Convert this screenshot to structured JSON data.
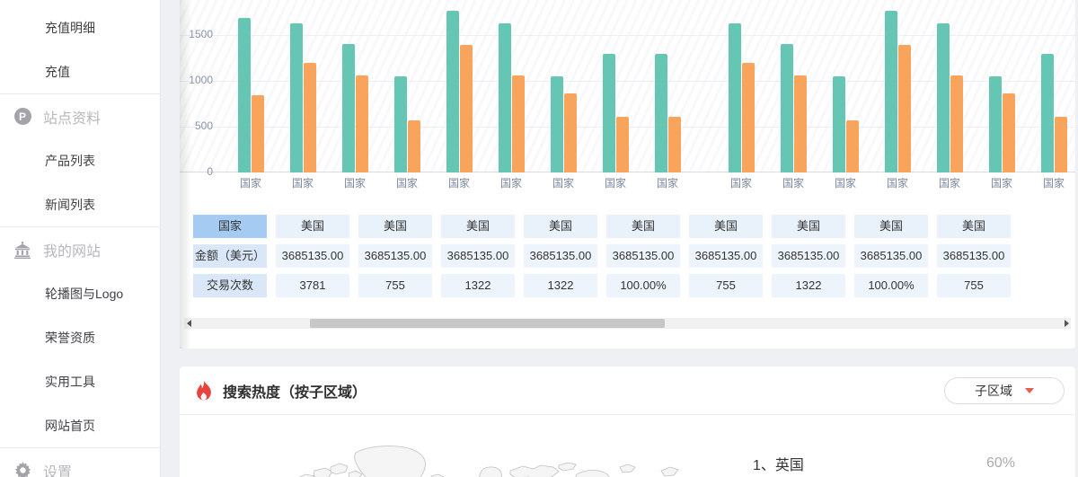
{
  "sidebar": {
    "items": [
      {
        "type": "sub",
        "label": "充值明细"
      },
      {
        "type": "sub",
        "label": "充值"
      },
      {
        "type": "divider"
      },
      {
        "type": "section",
        "icon": "p-circle-icon",
        "label": "站点资料"
      },
      {
        "type": "sub",
        "label": "产品列表"
      },
      {
        "type": "sub",
        "label": "新闻列表"
      },
      {
        "type": "divider"
      },
      {
        "type": "section",
        "icon": "bank-icon",
        "label": "我的网站"
      },
      {
        "type": "sub",
        "label": "轮播图与Logo"
      },
      {
        "type": "sub",
        "label": "荣誉资质"
      },
      {
        "type": "sub",
        "label": "实用工具"
      },
      {
        "type": "sub",
        "label": "网站首页"
      },
      {
        "type": "divider"
      },
      {
        "type": "section",
        "icon": "gear-icon",
        "label": "设置"
      }
    ]
  },
  "chart_data": {
    "type": "bar",
    "categories": [
      "国家",
      "国家",
      "国家",
      "国家",
      "国家",
      "国家",
      "国家",
      "国家",
      "国家",
      "国家",
      "国家",
      "国家",
      "国家",
      "国家",
      "国家",
      "国家"
    ],
    "series": [
      {
        "name": "teal",
        "color": "#65c7b3",
        "values": [
          1680,
          1630,
          1400,
          1050,
          1760,
          1630,
          1050,
          1290,
          1290,
          1630,
          1400,
          1050,
          1760,
          1630,
          1050,
          1290
        ]
      },
      {
        "name": "orange",
        "color": "#f9a45c",
        "values": [
          840,
          1190,
          1060,
          570,
          1390,
          1060,
          860,
          610,
          610,
          1190,
          1060,
          570,
          1390,
          1060,
          860,
          610
        ]
      }
    ],
    "yticks": [
      "0",
      "500",
      "1000",
      "1500"
    ],
    "ytick_values": [
      0,
      500,
      1000,
      1500
    ],
    "ylim": [
      0,
      1880
    ],
    "grid": true,
    "legend_position": "none",
    "gap_after_index": 8,
    "note": "top of chart cut off by viewport; horizontal scroll active"
  },
  "table": {
    "rows": [
      {
        "header": "国家",
        "cells": [
          "美国",
          "美国",
          "美国",
          "美国",
          "美国",
          "美国",
          "美国",
          "美国",
          "美国"
        ]
      },
      {
        "header": "金额（美元）",
        "cells": [
          "3685135.00",
          "3685135.00",
          "3685135.00",
          "3685135.00",
          "3685135.00",
          "3685135.00",
          "3685135.00",
          "3685135.00",
          "3685135.00"
        ]
      },
      {
        "header": "交易次数",
        "cells": [
          "3781",
          "755",
          "1322",
          "1322",
          "100.00%",
          "755",
          "1322",
          "100.00%",
          "755"
        ]
      }
    ]
  },
  "heat_section": {
    "title": "搜索热度（按子区域）",
    "dropdown_label": "子区域",
    "list": [
      {
        "rank_name": "1、英国",
        "value": "60%"
      }
    ]
  },
  "colors": {
    "bar_teal": "#65c7b3",
    "bar_orange": "#f9a45c",
    "table_header_active": "#a6cbf2",
    "table_header": "#d9e7f8",
    "table_cell": "#edf4fc",
    "flame_red": "#e8433e",
    "caret_red": "#e85a50",
    "page_bg": "#eef0f4"
  }
}
